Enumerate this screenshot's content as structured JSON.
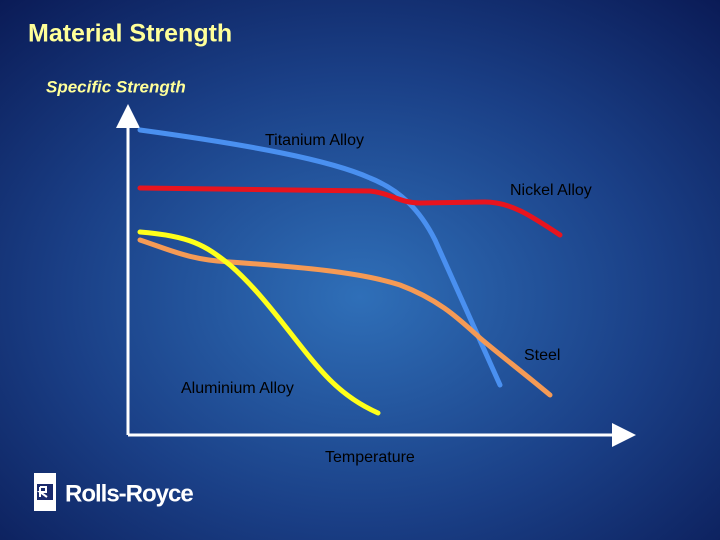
{
  "title": "Material Strength",
  "y_axis_label": "Specific Strength",
  "x_axis_label": "Temperature",
  "curves": [
    {
      "label": "Titanium Alloy"
    },
    {
      "label": "Nickel Alloy"
    },
    {
      "label": "Steel"
    },
    {
      "label": "Aluminium Alloy"
    }
  ],
  "logo": {
    "text": "Rolls-Royce"
  }
}
